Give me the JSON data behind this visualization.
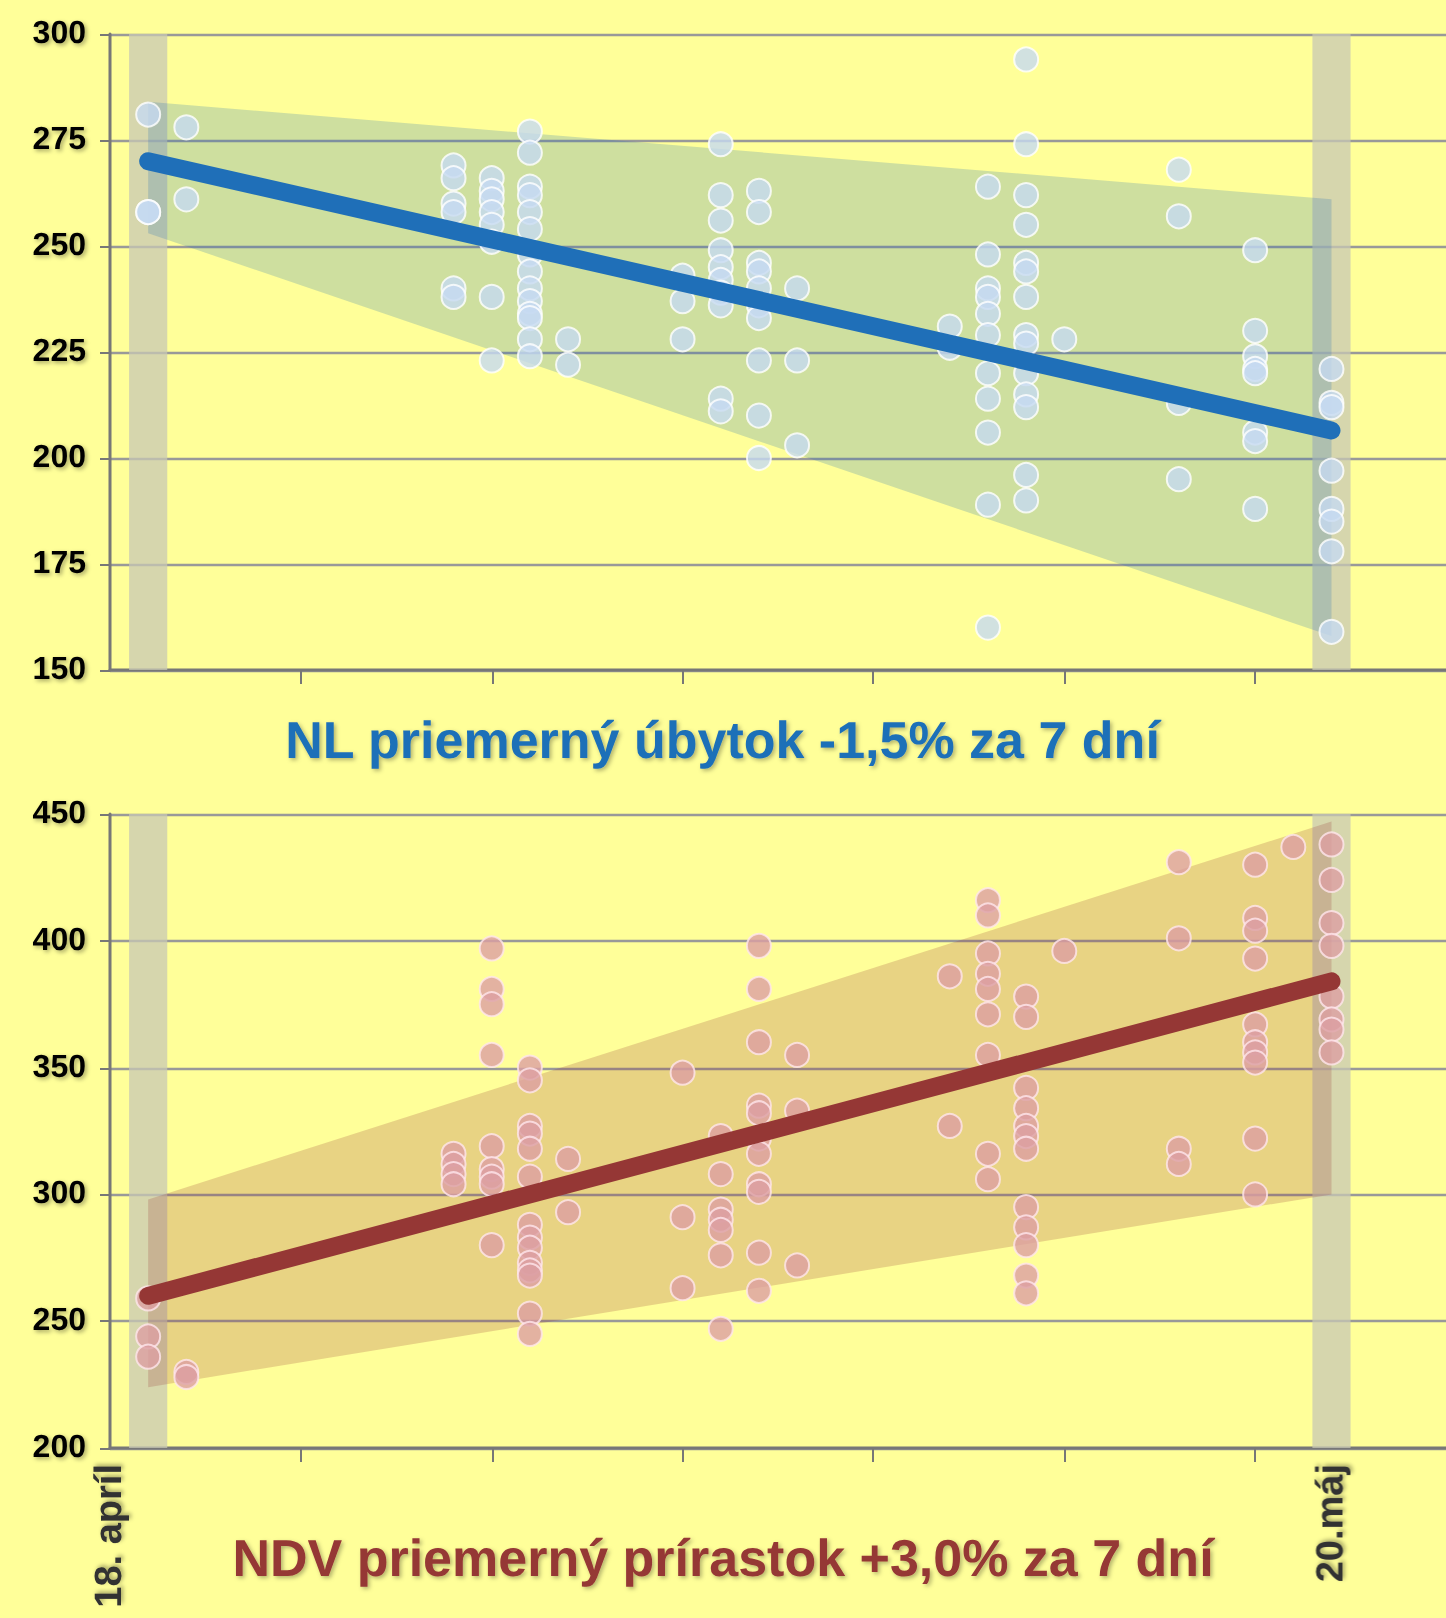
{
  "chart_data": [
    {
      "type": "scatter",
      "xlim": [
        "--04-18",
        "--05-23"
      ],
      "xticks": [
        {
          "value": "--04-18",
          "label": "18. apríl"
        },
        {
          "value": "--04-23",
          "label": null
        },
        {
          "value": "--04-28",
          "label": null
        },
        {
          "value": "--05-03",
          "label": null
        },
        {
          "value": "--05-08",
          "label": null
        },
        {
          "value": "--05-13",
          "label": null
        },
        {
          "value": "--05-18",
          "label": null
        },
        {
          "value": "--05-20",
          "label": "20.máj"
        },
        {
          "value": "--05-23",
          "label": null
        }
      ],
      "ylim": [
        150,
        300
      ],
      "yticks": [
        150,
        175,
        200,
        225,
        250,
        275,
        300
      ],
      "grid": "y",
      "tick_labels": "y",
      "annotations": [
        "NL priemerný úbytok -1,5% za 7 dní"
      ],
      "bands": [
        {
          "axis": "x",
          "from": "--04-18T12:00",
          "to": "--04-19T12:00",
          "color": "#c8c8b4"
        },
        {
          "axis": "x",
          "from": "--05-19T12:00",
          "to": "--05-20T12:00",
          "color": "#c8c8b4"
        }
      ],
      "series": [
        {
          "color": "#c5d9f1",
          "marker": "circle",
          "x": [
            "--04-19",
            "--04-19",
            "--04-19",
            "--04-20",
            "--04-20",
            "--04-27",
            "--04-27",
            "--04-27",
            "--04-27",
            "--04-27",
            "--04-27",
            "--04-28",
            "--04-28",
            "--04-28",
            "--04-28",
            "--04-28",
            "--04-28",
            "--04-28",
            "--04-28",
            "--04-29",
            "--04-29",
            "--04-29",
            "--04-29",
            "--04-29",
            "--04-29",
            "--04-29",
            "--04-29",
            "--04-29",
            "--04-29",
            "--04-29",
            "--04-29",
            "--04-29",
            "--04-29",
            "--04-30",
            "--04-30",
            "--05-03",
            "--05-03",
            "--05-03",
            "--05-04",
            "--05-04",
            "--05-04",
            "--05-04",
            "--05-04",
            "--05-04",
            "--05-04",
            "--05-04",
            "--05-04",
            "--05-04",
            "--05-05",
            "--05-05",
            "--05-05",
            "--05-05",
            "--05-05",
            "--05-05",
            "--05-05",
            "--05-05",
            "--05-05",
            "--05-05",
            "--05-06",
            "--05-06",
            "--05-06",
            "--05-10",
            "--05-10",
            "--05-11",
            "--05-11",
            "--05-11",
            "--05-11",
            "--05-11",
            "--05-11",
            "--05-11",
            "--05-11",
            "--05-11",
            "--05-11",
            "--05-11",
            "--05-12",
            "--05-12",
            "--05-12",
            "--05-12",
            "--05-12",
            "--05-12",
            "--05-12",
            "--05-12",
            "--05-12",
            "--05-12",
            "--05-12",
            "--05-12",
            "--05-12",
            "--05-12",
            "--05-13",
            "--05-16",
            "--05-16",
            "--05-16",
            "--05-16",
            "--05-18",
            "--05-18",
            "--05-18",
            "--05-18",
            "--05-18",
            "--05-18",
            "--05-18",
            "--05-18",
            "--05-20",
            "--05-20",
            "--05-20",
            "--05-20",
            "--05-20",
            "--05-20",
            "--05-20",
            "--05-20"
          ],
          "values": [
            281,
            258,
            258,
            278,
            261,
            269,
            266,
            260,
            258,
            240,
            238,
            266,
            263,
            261,
            258,
            255,
            251,
            238,
            223,
            277,
            272,
            264,
            262,
            258,
            254,
            248,
            244,
            240,
            237,
            234,
            233,
            228,
            224,
            228,
            222,
            243,
            237,
            228,
            274,
            262,
            256,
            249,
            245,
            242,
            239,
            236,
            214,
            211,
            263,
            258,
            246,
            244,
            240,
            236,
            233,
            223,
            210,
            200,
            240,
            223,
            203,
            231,
            226,
            264,
            248,
            240,
            238,
            234,
            229,
            220,
            214,
            206,
            189,
            160,
            294,
            274,
            262,
            255,
            246,
            244,
            238,
            229,
            227,
            220,
            215,
            212,
            196,
            190,
            228,
            268,
            257,
            213,
            195,
            249,
            230,
            224,
            221,
            220,
            206,
            204,
            188,
            221,
            213,
            212,
            197,
            188,
            185,
            178,
            159
          ]
        },
        {
          "type": "line",
          "color": "#1f6fb8",
          "x": [
            "--04-19",
            "--05-20"
          ],
          "values": [
            270,
            206.5
          ],
          "lower": [
            253,
            158
          ],
          "upper": [
            284,
            261
          ]
        }
      ]
    },
    {
      "type": "scatter",
      "xlim": [
        "--04-18",
        "--05-23"
      ],
      "xticks": [
        {
          "value": "--04-18",
          "label": "18. apríl"
        },
        {
          "value": "--04-23",
          "label": null
        },
        {
          "value": "--04-28",
          "label": null
        },
        {
          "value": "--05-03",
          "label": null
        },
        {
          "value": "--05-08",
          "label": null
        },
        {
          "value": "--05-13",
          "label": null
        },
        {
          "value": "--05-18",
          "label": null
        },
        {
          "value": "--05-20",
          "label": "20.máj"
        },
        {
          "value": "--05-23",
          "label": null
        }
      ],
      "ylim": [
        200,
        450
      ],
      "yticks": [
        200,
        250,
        300,
        350,
        400,
        450
      ],
      "grid": "y",
      "annotations": [
        "NDV priemerný prírastok +3,0% za 7 dní"
      ],
      "bands": [
        {
          "axis": "x",
          "from": "--04-18T12:00",
          "to": "--04-19T12:00",
          "color": "#c8c8b4"
        },
        {
          "axis": "x",
          "from": "--05-19T12:00",
          "to": "--05-20T12:00",
          "color": "#c8c8b4"
        }
      ],
      "series": [
        {
          "color": "#dc9fa3",
          "marker": "circle",
          "x": [
            "--04-19",
            "--04-19",
            "--04-19",
            "--04-20",
            "--04-20",
            "--04-27",
            "--04-27",
            "--04-27",
            "--04-27",
            "--04-28",
            "--04-28",
            "--04-28",
            "--04-28",
            "--04-28",
            "--04-28",
            "--04-28",
            "--04-28",
            "--04-28",
            "--04-29",
            "--04-29",
            "--04-29",
            "--04-29",
            "--04-29",
            "--04-29",
            "--04-29",
            "--04-29",
            "--04-29",
            "--04-29",
            "--04-29",
            "--04-29",
            "--04-29",
            "--04-29",
            "--04-30",
            "--04-30",
            "--05-03",
            "--05-03",
            "--05-03",
            "--05-04",
            "--05-04",
            "--05-04",
            "--05-04",
            "--05-04",
            "--05-04",
            "--05-04",
            "--05-05",
            "--05-05",
            "--05-05",
            "--05-05",
            "--05-05",
            "--05-05",
            "--05-05",
            "--05-05",
            "--05-05",
            "--05-05",
            "--05-05",
            "--05-06",
            "--05-06",
            "--05-06",
            "--05-10",
            "--05-10",
            "--05-11",
            "--05-11",
            "--05-11",
            "--05-11",
            "--05-11",
            "--05-11",
            "--05-11",
            "--05-11",
            "--05-11",
            "--05-12",
            "--05-12",
            "--05-12",
            "--05-12",
            "--05-12",
            "--05-12",
            "--05-12",
            "--05-12",
            "--05-12",
            "--05-12",
            "--05-12",
            "--05-12",
            "--05-13",
            "--05-16",
            "--05-16",
            "--05-16",
            "--05-16",
            "--05-18",
            "--05-18",
            "--05-18",
            "--05-18",
            "--05-18",
            "--05-18",
            "--05-18",
            "--05-18",
            "--05-18",
            "--05-18",
            "--05-19",
            "--05-20",
            "--05-20",
            "--05-20",
            "--05-20",
            "--05-20",
            "--05-20",
            "--05-20",
            "--05-20"
          ],
          "values": [
            259,
            244,
            236,
            230,
            228,
            316,
            312,
            308,
            304,
            397,
            381,
            375,
            355,
            319,
            310,
            307,
            304,
            280,
            350,
            345,
            327,
            324,
            318,
            307,
            288,
            283,
            279,
            273,
            270,
            268,
            253,
            245,
            314,
            293,
            348,
            291,
            263,
            323,
            308,
            294,
            290,
            286,
            276,
            247,
            398,
            381,
            360,
            335,
            332,
            322,
            316,
            304,
            301,
            277,
            262,
            355,
            333,
            272,
            386,
            327,
            416,
            410,
            395,
            387,
            381,
            371,
            355,
            316,
            306,
            378,
            370,
            342,
            334,
            327,
            323,
            318,
            295,
            287,
            280,
            268,
            261,
            396,
            431,
            401,
            318,
            312,
            430,
            409,
            404,
            393,
            367,
            360,
            356,
            352,
            322,
            300,
            437,
            438,
            424,
            407,
            398,
            378,
            369,
            365,
            356
          ]
        },
        {
          "type": "line",
          "color": "#953735",
          "x": [
            "--04-19",
            "--05-20"
          ],
          "values": [
            260,
            384
          ],
          "lower": [
            224,
            300
          ],
          "upper": [
            298,
            447
          ]
        }
      ]
    }
  ]
}
